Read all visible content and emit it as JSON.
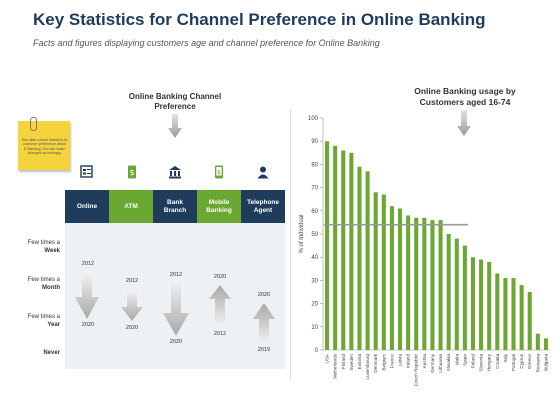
{
  "header": {
    "title": "Key Statistics for Channel Preference in Online Banking",
    "subtitle": "Facts and figures displaying customers age and channel preference for Online Banking"
  },
  "left_panel": {
    "heading": [
      "Online Banking Channel",
      "Preference"
    ],
    "sticky_note": "This slide covers statistics for customer preference about E-Banking. You can make changes accordingly.",
    "channels": [
      {
        "label": "Online",
        "icon": "online-form-icon",
        "color": "#1f3c5c"
      },
      {
        "label": "ATM",
        "icon": "atm-cash-icon",
        "color": "#6aa832"
      },
      {
        "label": "Bank Branch",
        "icon": "bank-building-icon",
        "color": "#1f3c5c"
      },
      {
        "label": "Mobile Banking",
        "icon": "mobile-phone-icon",
        "color": "#6aa832"
      },
      {
        "label": "Telephone Agent",
        "icon": "agent-person-icon",
        "color": "#1f3c5c"
      }
    ],
    "frequency_rows": [
      {
        "line1": "Few times a",
        "line2": "Week"
      },
      {
        "line1": "Few times a",
        "line2": "Month"
      },
      {
        "line1": "Few times a",
        "line2": "Year"
      },
      {
        "line1": "",
        "line2": "Never"
      }
    ],
    "transitions": [
      {
        "channel": "Online",
        "from": "2012",
        "to": "2020",
        "direction": "down"
      },
      {
        "channel": "ATM",
        "from": "2012",
        "to": "2020",
        "direction": "down"
      },
      {
        "channel": "Bank Branch",
        "from": "2012",
        "to": "2020",
        "direction": "down"
      },
      {
        "channel": "Mobile Banking",
        "from": "2012",
        "to": "2020",
        "direction": "up"
      },
      {
        "channel": "Telephone Agent",
        "from": "2019",
        "to": "2020",
        "direction": "up"
      }
    ]
  },
  "chart_data": {
    "type": "bar",
    "title": "Online Banking usage by Customers aged 16-74",
    "ylabel": "% of Individual",
    "xlabel": "",
    "ylim": [
      0,
      100
    ],
    "yticks": [
      0,
      10,
      20,
      30,
      40,
      50,
      60,
      70,
      80,
      90,
      100
    ],
    "grid": false,
    "bar_color": "#6aa832",
    "reference_line": {
      "value": 54,
      "color": "#999999"
    },
    "categories": [
      "USA",
      "Netherlands",
      "Finland",
      "Sweden",
      "Estonia",
      "Luxembourg",
      "Denmark",
      "Belgium",
      "France",
      "Latvia",
      "Ireland",
      "Czech Republic",
      "Austria",
      "Germany",
      "Lithuania",
      "Slovakia",
      "Malta",
      "Spain",
      "Poland",
      "Slovenia",
      "Hungary",
      "Croatia",
      "Italy",
      "Portugal",
      "Cyprus",
      "Greece",
      "Romania",
      "Bulgaria"
    ],
    "values": [
      90,
      88,
      86,
      85,
      79,
      77,
      68,
      67,
      62,
      61,
      58,
      57,
      57,
      56,
      56,
      50,
      48,
      45,
      40,
      39,
      38,
      33,
      31,
      31,
      28,
      25,
      7,
      5
    ]
  }
}
